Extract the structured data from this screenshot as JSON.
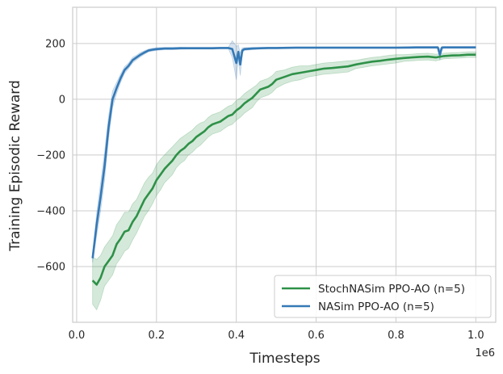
{
  "chart_data": {
    "type": "line",
    "xlabel": "Timesteps",
    "ylabel": "Training Episodic Reward",
    "x_offset_label": "1e6",
    "xlim": [
      -0.01,
      1.05
    ],
    "ylim": [
      -800,
      330
    ],
    "x_ticks": [
      0.0,
      0.2,
      0.4,
      0.6,
      0.8,
      1.0
    ],
    "x_tick_labels": [
      "0.0",
      "0.2",
      "0.4",
      "0.6",
      "0.8",
      "1.0"
    ],
    "y_ticks": [
      -600,
      -400,
      -200,
      0,
      200
    ],
    "y_tick_labels": [
      "−600",
      "−400",
      "−200",
      "0",
      "200"
    ],
    "grid": true,
    "legend_position": "lower-right",
    "series": [
      {
        "name": "StochNASim PPO-AO (n=5)",
        "color": "#2e9148",
        "x": [
          0.04,
          0.05,
          0.06,
          0.07,
          0.08,
          0.09,
          0.1,
          0.11,
          0.12,
          0.13,
          0.14,
          0.15,
          0.16,
          0.17,
          0.18,
          0.19,
          0.2,
          0.21,
          0.22,
          0.23,
          0.24,
          0.25,
          0.26,
          0.27,
          0.28,
          0.29,
          0.3,
          0.31,
          0.32,
          0.33,
          0.34,
          0.35,
          0.36,
          0.37,
          0.38,
          0.39,
          0.4,
          0.41,
          0.42,
          0.43,
          0.44,
          0.45,
          0.46,
          0.47,
          0.48,
          0.49,
          0.5,
          0.52,
          0.54,
          0.56,
          0.58,
          0.6,
          0.62,
          0.64,
          0.66,
          0.68,
          0.7,
          0.72,
          0.74,
          0.76,
          0.78,
          0.8,
          0.82,
          0.84,
          0.86,
          0.88,
          0.9,
          0.92,
          0.94,
          0.96,
          0.98,
          1.0
        ],
        "y": [
          -650,
          -665,
          -640,
          -600,
          -580,
          -560,
          -520,
          -500,
          -475,
          -470,
          -440,
          -420,
          -390,
          -360,
          -340,
          -320,
          -290,
          -270,
          -250,
          -235,
          -220,
          -200,
          -185,
          -175,
          -160,
          -150,
          -135,
          -125,
          -115,
          -100,
          -90,
          -85,
          -80,
          -70,
          -60,
          -55,
          -40,
          -30,
          -15,
          -5,
          5,
          20,
          35,
          40,
          45,
          55,
          70,
          80,
          90,
          95,
          100,
          105,
          110,
          112,
          115,
          118,
          125,
          130,
          135,
          138,
          142,
          145,
          148,
          150,
          152,
          153,
          150,
          155,
          157,
          158,
          160,
          160
        ],
        "band": [
          85,
          90,
          80,
          70,
          70,
          70,
          70,
          70,
          70,
          65,
          65,
          60,
          60,
          60,
          60,
          55,
          55,
          55,
          50,
          50,
          50,
          45,
          45,
          45,
          40,
          40,
          40,
          40,
          35,
          35,
          35,
          35,
          35,
          35,
          35,
          35,
          35,
          35,
          35,
          35,
          35,
          30,
          30,
          30,
          30,
          30,
          30,
          25,
          25,
          25,
          20,
          20,
          20,
          20,
          20,
          20,
          15,
          15,
          15,
          15,
          15,
          15,
          12,
          12,
          12,
          12,
          12,
          10,
          10,
          10,
          10,
          10
        ]
      },
      {
        "name": "NASim PPO-AO (n=5)",
        "color": "#3579b6",
        "x": [
          0.04,
          0.05,
          0.06,
          0.07,
          0.08,
          0.09,
          0.1,
          0.11,
          0.12,
          0.13,
          0.14,
          0.15,
          0.16,
          0.17,
          0.18,
          0.19,
          0.2,
          0.22,
          0.24,
          0.26,
          0.28,
          0.3,
          0.32,
          0.34,
          0.36,
          0.38,
          0.39,
          0.4,
          0.405,
          0.41,
          0.415,
          0.42,
          0.44,
          0.46,
          0.48,
          0.5,
          0.55,
          0.6,
          0.65,
          0.7,
          0.75,
          0.8,
          0.85,
          0.9,
          0.905,
          0.91,
          0.915,
          0.92,
          0.94,
          0.96,
          0.98,
          1.0
        ],
        "y": [
          -570,
          -450,
          -350,
          -240,
          -100,
          0,
          40,
          75,
          105,
          120,
          140,
          150,
          160,
          168,
          175,
          178,
          180,
          182,
          182,
          183,
          183,
          183,
          183,
          183,
          184,
          184,
          180,
          130,
          170,
          125,
          175,
          180,
          182,
          183,
          184,
          184,
          185,
          185,
          185,
          185,
          185,
          185,
          186,
          186,
          186,
          160,
          185,
          186,
          186,
          186,
          186,
          186
        ],
        "band": [
          15,
          40,
          50,
          50,
          40,
          30,
          20,
          15,
          12,
          10,
          10,
          8,
          8,
          6,
          5,
          5,
          5,
          4,
          4,
          4,
          3,
          3,
          3,
          3,
          3,
          3,
          30,
          60,
          25,
          40,
          10,
          5,
          4,
          3,
          3,
          3,
          3,
          3,
          3,
          3,
          3,
          3,
          3,
          3,
          3,
          20,
          5,
          3,
          3,
          3,
          3,
          3
        ]
      }
    ]
  }
}
